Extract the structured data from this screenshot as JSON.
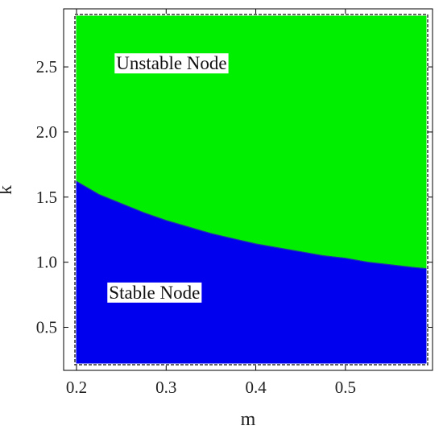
{
  "chart_data": {
    "type": "area",
    "title": "",
    "xlabel": "m",
    "ylabel": "k",
    "xlim": [
      0.2,
      0.59
    ],
    "ylim": [
      0.225,
      2.89
    ],
    "x_ticks": [
      0.2,
      0.3,
      0.4,
      0.5
    ],
    "x_tick_labels": [
      "0.2",
      "0.3",
      "0.4",
      "0.5"
    ],
    "y_ticks": [
      0.5,
      1.0,
      1.5,
      2.0,
      2.5
    ],
    "y_tick_labels": [
      "0.5",
      "1.0",
      "1.5",
      "2.0",
      "2.5"
    ],
    "boundary": {
      "x": [
        0.2,
        0.225,
        0.25,
        0.275,
        0.3,
        0.325,
        0.35,
        0.375,
        0.4,
        0.425,
        0.45,
        0.475,
        0.5,
        0.525,
        0.55,
        0.575,
        0.59
      ],
      "y": [
        1.62,
        1.52,
        1.45,
        1.38,
        1.32,
        1.27,
        1.22,
        1.18,
        1.14,
        1.11,
        1.08,
        1.05,
        1.03,
        1.0,
        0.98,
        0.96,
        0.95
      ]
    },
    "regions": [
      {
        "name": "Unstable Node",
        "position": "above",
        "color": "#00ee00",
        "label_at": {
          "x": 0.306,
          "y": 2.53
        }
      },
      {
        "name": "Stable Node",
        "position": "below",
        "color": "#0000ee",
        "label_at": {
          "x": 0.287,
          "y": 0.77
        }
      }
    ],
    "grid": false,
    "legend": "none"
  }
}
